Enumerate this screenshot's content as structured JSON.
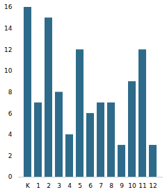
{
  "chart_data": {
    "type": "bar",
    "categories": [
      "K",
      "1",
      "2",
      "3",
      "4",
      "5",
      "6",
      "7",
      "8",
      "9",
      "10",
      "11",
      "12"
    ],
    "values": [
      16,
      7,
      15,
      8,
      4,
      12,
      6,
      7,
      7,
      3,
      9,
      12,
      3
    ],
    "color": "#2e6b8a",
    "ylim": [
      0,
      16
    ],
    "yticks": [
      0,
      2,
      4,
      6,
      8,
      10,
      12,
      14,
      16
    ],
    "grid": false
  }
}
